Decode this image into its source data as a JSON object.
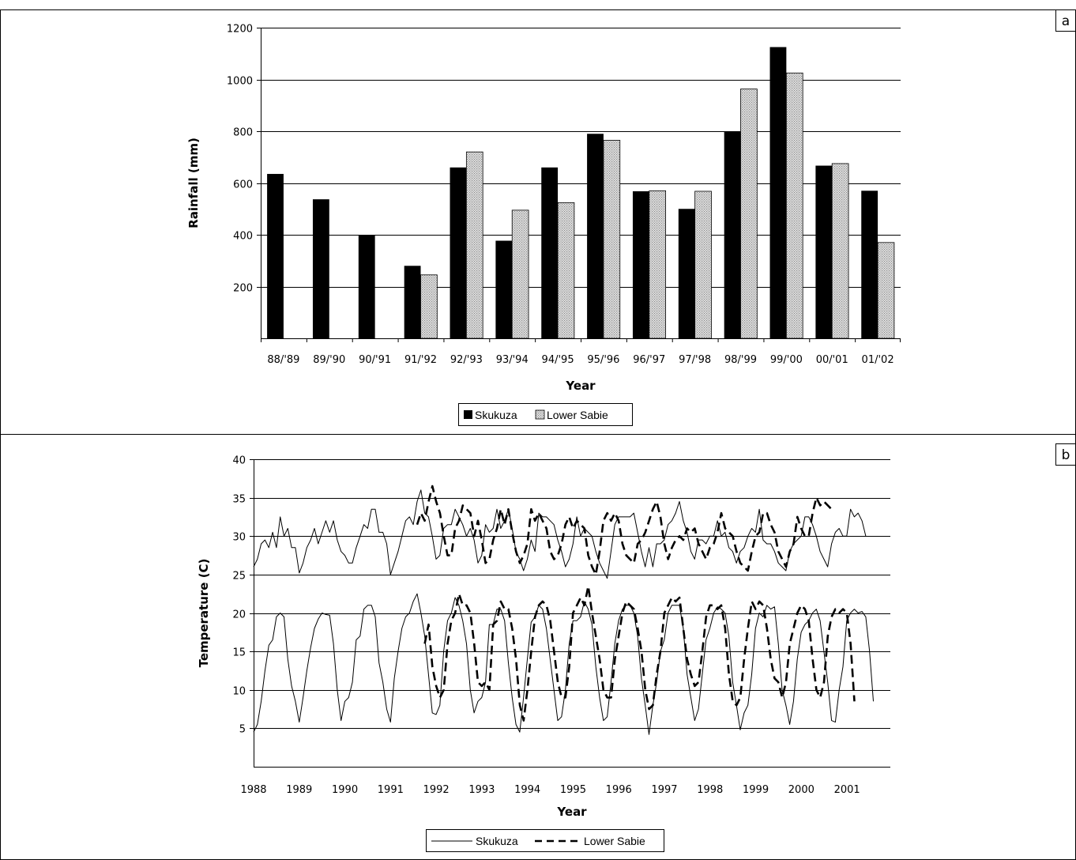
{
  "panels": [
    {
      "label": "a"
    },
    {
      "label": "b"
    }
  ],
  "chart_data": [
    {
      "type": "bar",
      "xlabel": "Year",
      "ylabel": "Rainfall (mm)",
      "ylim": [
        0,
        1200
      ],
      "yticks": [
        200,
        400,
        600,
        800,
        1000,
        1200
      ],
      "grid": true,
      "legend": "bottom",
      "categories": [
        "88/'89",
        "89/'90",
        "90/'91",
        "91/'92",
        "92/'93",
        "93/'94",
        "94/'95",
        "95/'96",
        "96/'97",
        "97/'98",
        "98/'99",
        "99/'00",
        "00/'01",
        "01/'02"
      ],
      "series": [
        {
          "name": "Skukuza",
          "color": "#000000",
          "pattern": "solid",
          "values": [
            635,
            537,
            400,
            280,
            660,
            377,
            660,
            790,
            568,
            500,
            800,
            1125,
            667,
            570
          ]
        },
        {
          "name": "Lower Sabie",
          "color": "#d0d0d0",
          "pattern": "dotted",
          "values": [
            null,
            null,
            null,
            245,
            720,
            495,
            524,
            765,
            570,
            568,
            963,
            1025,
            675,
            370
          ]
        }
      ]
    },
    {
      "type": "line",
      "xlabel": "Year",
      "ylabel": "Temperature (C)",
      "ylim": [
        0,
        40
      ],
      "yticks": [
        5,
        10,
        15,
        20,
        25,
        30,
        35,
        40
      ],
      "xlim": [
        1988,
        2001.95
      ],
      "xticks": [
        "1988",
        "1989",
        "1990",
        "1991",
        "1992",
        "1993",
        "1994",
        "1995",
        "1996",
        "1997",
        "1998",
        "1999",
        "2000",
        "2001"
      ],
      "grid": true,
      "legend": "bottom",
      "series": [
        {
          "name": "Skukuza",
          "kind": "max",
          "style": "solid",
          "x_start": 1988,
          "x_step": 0.0833,
          "values": [
            26,
            27,
            29,
            29.5,
            28.5,
            30.5,
            28.5,
            32.5,
            30,
            31,
            28.5,
            28.5,
            25.2,
            26.5,
            28.5,
            29.5,
            31,
            29,
            30.5,
            32,
            30.5,
            32,
            29.5,
            28,
            27.5,
            26.5,
            26.5,
            28.5,
            30,
            31.5,
            31,
            33.5,
            33.5,
            30.5,
            30.5,
            29,
            25,
            26.5,
            28,
            30,
            32,
            32.5,
            31.5,
            34.5,
            36,
            33,
            32.5,
            30,
            27,
            27.5,
            31,
            31.5,
            31.5,
            33.5,
            32.5,
            31.5,
            30,
            31,
            29.5,
            26.5,
            27.5,
            31.5,
            30.5,
            31,
            33.5,
            31,
            32,
            33.5,
            31,
            28,
            27,
            25.5,
            27,
            29.5,
            28,
            33,
            32.5,
            32.5,
            32,
            31.5,
            29.5,
            28,
            26,
            27,
            29,
            32.5,
            30,
            31,
            30.5,
            30,
            28,
            26.5,
            25.5,
            24.5,
            28,
            31.5,
            32.5,
            32.5,
            32.5,
            32.5,
            33,
            30.5,
            28,
            26,
            28.5,
            26,
            29,
            29,
            29.5,
            31.5,
            32,
            33,
            34.5,
            32,
            30.5,
            28,
            27,
            29.5,
            29.5,
            29,
            30,
            30,
            32,
            30,
            30.5,
            28.5,
            28,
            26.5,
            28,
            28.5,
            30,
            31,
            30.5,
            33.5,
            29.5,
            29,
            29,
            28,
            26.5,
            26,
            25.5,
            28,
            29,
            29.5,
            30,
            32.5,
            32.5,
            31.5,
            30,
            28,
            27,
            26,
            29,
            30.5,
            31,
            30,
            30,
            33.5,
            32.5,
            33,
            32,
            30
          ]
        },
        {
          "name": "Lower Sabie",
          "kind": "max",
          "style": "dashed",
          "x_start": 1991.583,
          "x_step": 0.0833,
          "values": [
            31.5,
            33,
            32,
            34.5,
            36.5,
            34.5,
            33,
            30,
            27.5,
            27.5,
            31,
            32,
            34,
            33.5,
            33,
            30,
            32,
            29.5,
            26.5,
            27,
            29.5,
            31,
            33.5,
            31.5,
            33.5,
            30.5,
            28,
            26.5,
            27.5,
            29,
            33.5,
            32,
            33,
            32,
            31,
            28,
            27,
            27.5,
            29,
            31.5,
            32.5,
            31,
            32,
            31.5,
            31,
            27.5,
            26,
            25,
            28,
            32,
            33,
            32,
            33,
            32,
            29,
            27.5,
            27,
            26.5,
            29,
            29.5,
            30.5,
            32,
            33.5,
            34.5,
            32.5,
            29,
            27,
            28.5,
            29.5,
            30,
            29.5,
            31,
            30.5,
            31,
            29,
            28,
            27,
            28.5,
            29,
            30.5,
            33,
            31,
            30.5,
            30,
            28,
            26.5,
            26,
            25.5,
            28,
            30,
            30.5,
            33,
            33,
            31.5,
            30.5,
            28,
            27,
            26,
            28,
            29,
            32.5,
            31,
            30,
            30,
            33,
            35,
            34,
            34.5,
            34,
            33.5
          ]
        },
        {
          "name": "Skukuza",
          "kind": "min",
          "style": "solid",
          "x_start": 1988,
          "x_step": 0.0833,
          "values": [
            4.5,
            5.5,
            8.5,
            12.5,
            15.8,
            16.5,
            19.5,
            20,
            19.5,
            14,
            10.5,
            8.5,
            5.8,
            9,
            12.5,
            15.5,
            18,
            19.2,
            20,
            19.8,
            19.7,
            16,
            10,
            6,
            8.5,
            9,
            11,
            16.5,
            17,
            20.5,
            21,
            21,
            19.5,
            13.5,
            11,
            7.5,
            5.8,
            11.5,
            15,
            18,
            19.5,
            20,
            21.5,
            22.5,
            20,
            17,
            12,
            7,
            6.8,
            8,
            15,
            19,
            20,
            22,
            21,
            19,
            16,
            10,
            7,
            8.5,
            9,
            11,
            18.5,
            18.5,
            20.5,
            20.5,
            19,
            13.5,
            9,
            5.5,
            4.5,
            9,
            14,
            18.8,
            19.5,
            21,
            20.5,
            18,
            14,
            10,
            6,
            6.5,
            10,
            16,
            19,
            19,
            19.5,
            21.5,
            20.5,
            18.5,
            13,
            9,
            6,
            6.5,
            11,
            16,
            19,
            20.5,
            21,
            21,
            20,
            17,
            11.5,
            8,
            4.2,
            8,
            11,
            15,
            16.5,
            20,
            21,
            21,
            21,
            18,
            12,
            9,
            6,
            7.5,
            12,
            16.5,
            18,
            20,
            20.8,
            20.5,
            20,
            17,
            11,
            8,
            4.8,
            7,
            8,
            12,
            18,
            20,
            19.5,
            21,
            20.5,
            20.8,
            16,
            10,
            8,
            5.5,
            8.5,
            14,
            17.5,
            18.5,
            19,
            20,
            20.5,
            19,
            15,
            11,
            6,
            5.8,
            10,
            13,
            19,
            20,
            20.5,
            20,
            20.2,
            19.5,
            15,
            8.5
          ]
        },
        {
          "name": "Lower Sabie",
          "kind": "min",
          "style": "dashed",
          "x_start": 1991.583,
          "x_step": 0.0833,
          "values": [
            15.5,
            null,
            16,
            18.5,
            13,
            10.5,
            9,
            10,
            16,
            19,
            20,
            22.5,
            21,
            21,
            20,
            16,
            11,
            10.5,
            11,
            10,
            18.5,
            19,
            21.5,
            20.5,
            20.5,
            18,
            14,
            8,
            6,
            10,
            15,
            19.5,
            21,
            21.5,
            21,
            19,
            15,
            11,
            9,
            9,
            13,
            20,
            21,
            22,
            21,
            23.5,
            20,
            17,
            14,
            10,
            9,
            9,
            14,
            17,
            20,
            21.5,
            21,
            20.5,
            18,
            15,
            10,
            7.5,
            8,
            12,
            15,
            20,
            21,
            22,
            21.5,
            22,
            18,
            14,
            12,
            10.5,
            11,
            15,
            19.5,
            21,
            21,
            20.5,
            21,
            18,
            12,
            8.5,
            8,
            9,
            14,
            18,
            21.5,
            20.5,
            21.5,
            21,
            18,
            14,
            11.5,
            11,
            9,
            11,
            16,
            18,
            20,
            21,
            20.5,
            19,
            14,
            10,
            9,
            11,
            17,
            19.5,
            20.5,
            20,
            20.5,
            20,
            16,
            8.5
          ]
        }
      ]
    }
  ]
}
